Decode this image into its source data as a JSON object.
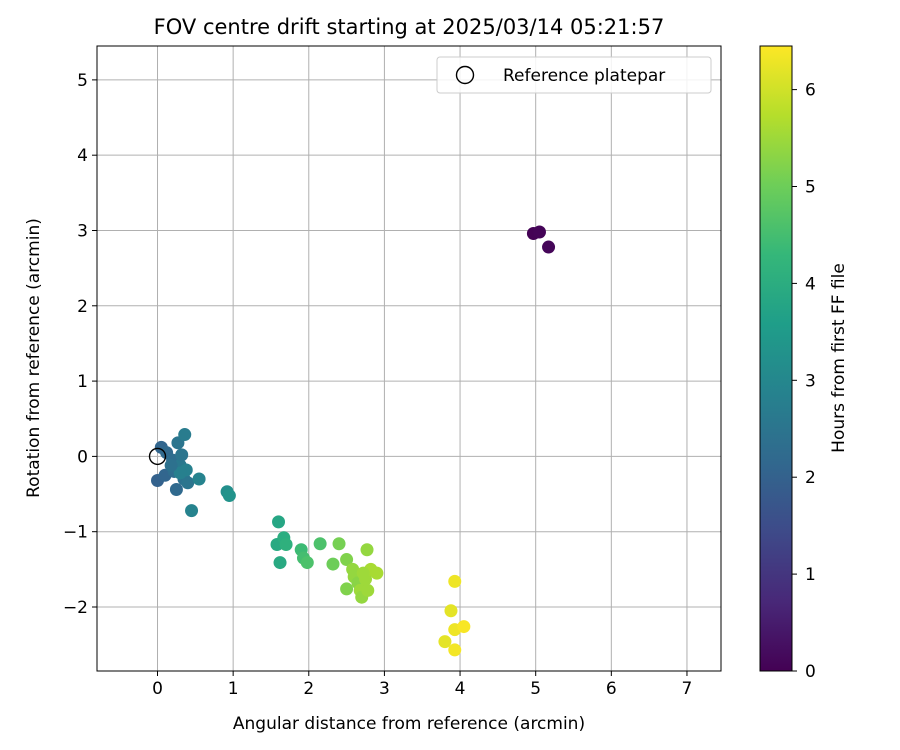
{
  "chart_data": {
    "type": "scatter",
    "title": "FOV centre drift starting at 2025/03/14 05:21:57",
    "xlabel": "Angular distance from reference (arcmin)",
    "ylabel": "Rotation from reference (arcmin)",
    "xlim": [
      -0.8,
      7.45
    ],
    "ylim": [
      -2.85,
      5.45
    ],
    "xticks": [
      0,
      1,
      2,
      3,
      4,
      5,
      6,
      7
    ],
    "yticks": [
      -2,
      -1,
      0,
      1,
      2,
      3,
      4,
      5
    ],
    "xtick_labels": [
      "0",
      "1",
      "2",
      "3",
      "4",
      "5",
      "6",
      "7"
    ],
    "ytick_labels": [
      "−2",
      "−1",
      "0",
      "1",
      "2",
      "3",
      "4",
      "5"
    ],
    "grid": true,
    "legend": {
      "placement": "top-right",
      "entries": [
        {
          "label": "Reference platepar",
          "marker": "open-circle"
        }
      ]
    },
    "reference": {
      "x": 0,
      "y": 0
    },
    "colorbar": {
      "label": "Hours from first FF file",
      "colormap": "viridis",
      "range": [
        0,
        6.45
      ],
      "ticks": [
        0,
        1,
        2,
        3,
        4,
        5,
        6
      ],
      "tick_labels": [
        "0",
        "1",
        "2",
        "3",
        "4",
        "5",
        "6"
      ]
    },
    "series": [
      {
        "points": [
          {
            "x": 4.97,
            "y": 2.96,
            "t": 0.02
          },
          {
            "x": 5.05,
            "y": 2.98,
            "t": 0.05
          },
          {
            "x": 5.17,
            "y": 2.78,
            "t": 0.1
          },
          {
            "x": 0.05,
            "y": 0.12,
            "t": 2.1
          },
          {
            "x": 0.0,
            "y": -0.32,
            "t": 2.0
          },
          {
            "x": 0.1,
            "y": -0.25,
            "t": 2.1
          },
          {
            "x": 0.12,
            "y": 0.05,
            "t": 2.2
          },
          {
            "x": 0.2,
            "y": -0.05,
            "t": 2.3
          },
          {
            "x": 0.22,
            "y": -0.2,
            "t": 2.3
          },
          {
            "x": 0.25,
            "y": -0.44,
            "t": 2.2
          },
          {
            "x": 0.27,
            "y": 0.18,
            "t": 2.5
          },
          {
            "x": 0.3,
            "y": -0.12,
            "t": 2.6
          },
          {
            "x": 0.32,
            "y": 0.02,
            "t": 2.5
          },
          {
            "x": 0.35,
            "y": -0.3,
            "t": 2.4
          },
          {
            "x": 0.36,
            "y": 0.29,
            "t": 2.7
          },
          {
            "x": 0.38,
            "y": -0.18,
            "t": 2.8
          },
          {
            "x": 0.4,
            "y": -0.35,
            "t": 2.5
          },
          {
            "x": 0.45,
            "y": -0.72,
            "t": 2.9
          },
          {
            "x": 0.55,
            "y": -0.3,
            "t": 2.9
          },
          {
            "x": 0.3,
            "y": -0.22,
            "t": 2.8
          },
          {
            "x": 0.18,
            "y": -0.12,
            "t": 2.4
          },
          {
            "x": 0.92,
            "y": -0.47,
            "t": 3.2
          },
          {
            "x": 0.95,
            "y": -0.52,
            "t": 3.3
          },
          {
            "x": 1.6,
            "y": -0.87,
            "t": 3.8
          },
          {
            "x": 1.58,
            "y": -1.17,
            "t": 3.9
          },
          {
            "x": 1.67,
            "y": -1.08,
            "t": 4.0
          },
          {
            "x": 1.7,
            "y": -1.17,
            "t": 4.1
          },
          {
            "x": 1.62,
            "y": -1.41,
            "t": 3.9
          },
          {
            "x": 1.9,
            "y": -1.24,
            "t": 4.4
          },
          {
            "x": 1.93,
            "y": -1.35,
            "t": 4.5
          },
          {
            "x": 1.98,
            "y": -1.41,
            "t": 4.6
          },
          {
            "x": 2.15,
            "y": -1.16,
            "t": 4.6
          },
          {
            "x": 2.32,
            "y": -1.43,
            "t": 5.0
          },
          {
            "x": 2.4,
            "y": -1.16,
            "t": 5.1
          },
          {
            "x": 2.5,
            "y": -1.37,
            "t": 5.2
          },
          {
            "x": 2.5,
            "y": -1.76,
            "t": 5.2
          },
          {
            "x": 2.58,
            "y": -1.5,
            "t": 5.4
          },
          {
            "x": 2.6,
            "y": -1.6,
            "t": 5.4
          },
          {
            "x": 2.65,
            "y": -1.68,
            "t": 5.3
          },
          {
            "x": 2.68,
            "y": -1.78,
            "t": 5.5
          },
          {
            "x": 2.7,
            "y": -1.87,
            "t": 5.4
          },
          {
            "x": 2.75,
            "y": -1.63,
            "t": 5.5
          },
          {
            "x": 2.77,
            "y": -1.24,
            "t": 5.4
          },
          {
            "x": 2.78,
            "y": -1.78,
            "t": 5.5
          },
          {
            "x": 2.82,
            "y": -1.5,
            "t": 5.6
          },
          {
            "x": 2.9,
            "y": -1.55,
            "t": 5.6
          },
          {
            "x": 2.72,
            "y": -1.55,
            "t": 5.5
          },
          {
            "x": 3.8,
            "y": -2.46,
            "t": 6.2
          },
          {
            "x": 3.88,
            "y": -2.05,
            "t": 6.2
          },
          {
            "x": 3.93,
            "y": -1.66,
            "t": 6.3
          },
          {
            "x": 3.93,
            "y": -2.3,
            "t": 6.3
          },
          {
            "x": 3.93,
            "y": -2.57,
            "t": 6.35
          },
          {
            "x": 4.05,
            "y": -2.26,
            "t": 6.4
          }
        ]
      }
    ]
  }
}
